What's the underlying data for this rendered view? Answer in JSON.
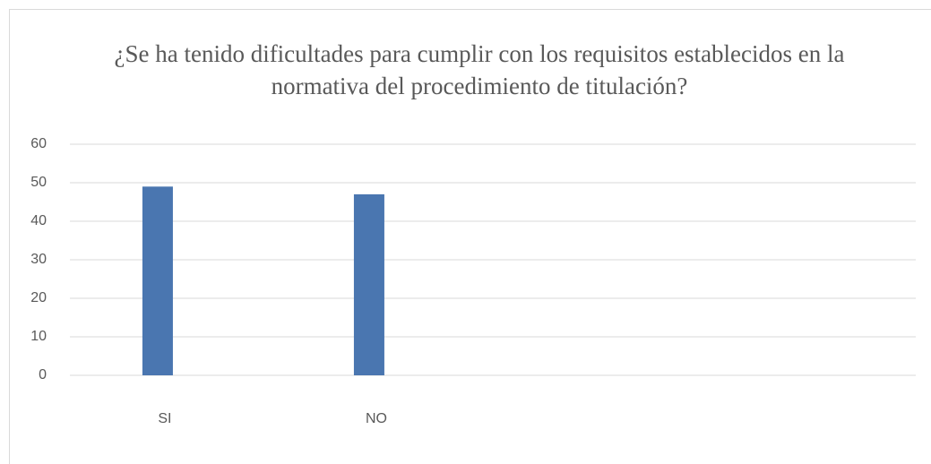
{
  "chart_data": {
    "type": "bar",
    "title": "¿Se ha tenido dificultades para cumplir con los requisitos establecidos en la normativa del procedimiento de titulación?",
    "categories": [
      "SI",
      "NO",
      null,
      null
    ],
    "values": [
      49,
      47,
      null,
      null
    ],
    "color": "#4a76b0",
    "ylim": [
      0,
      60
    ],
    "yticks": [
      0,
      10,
      20,
      30,
      40,
      50,
      60
    ],
    "grid": true
  }
}
